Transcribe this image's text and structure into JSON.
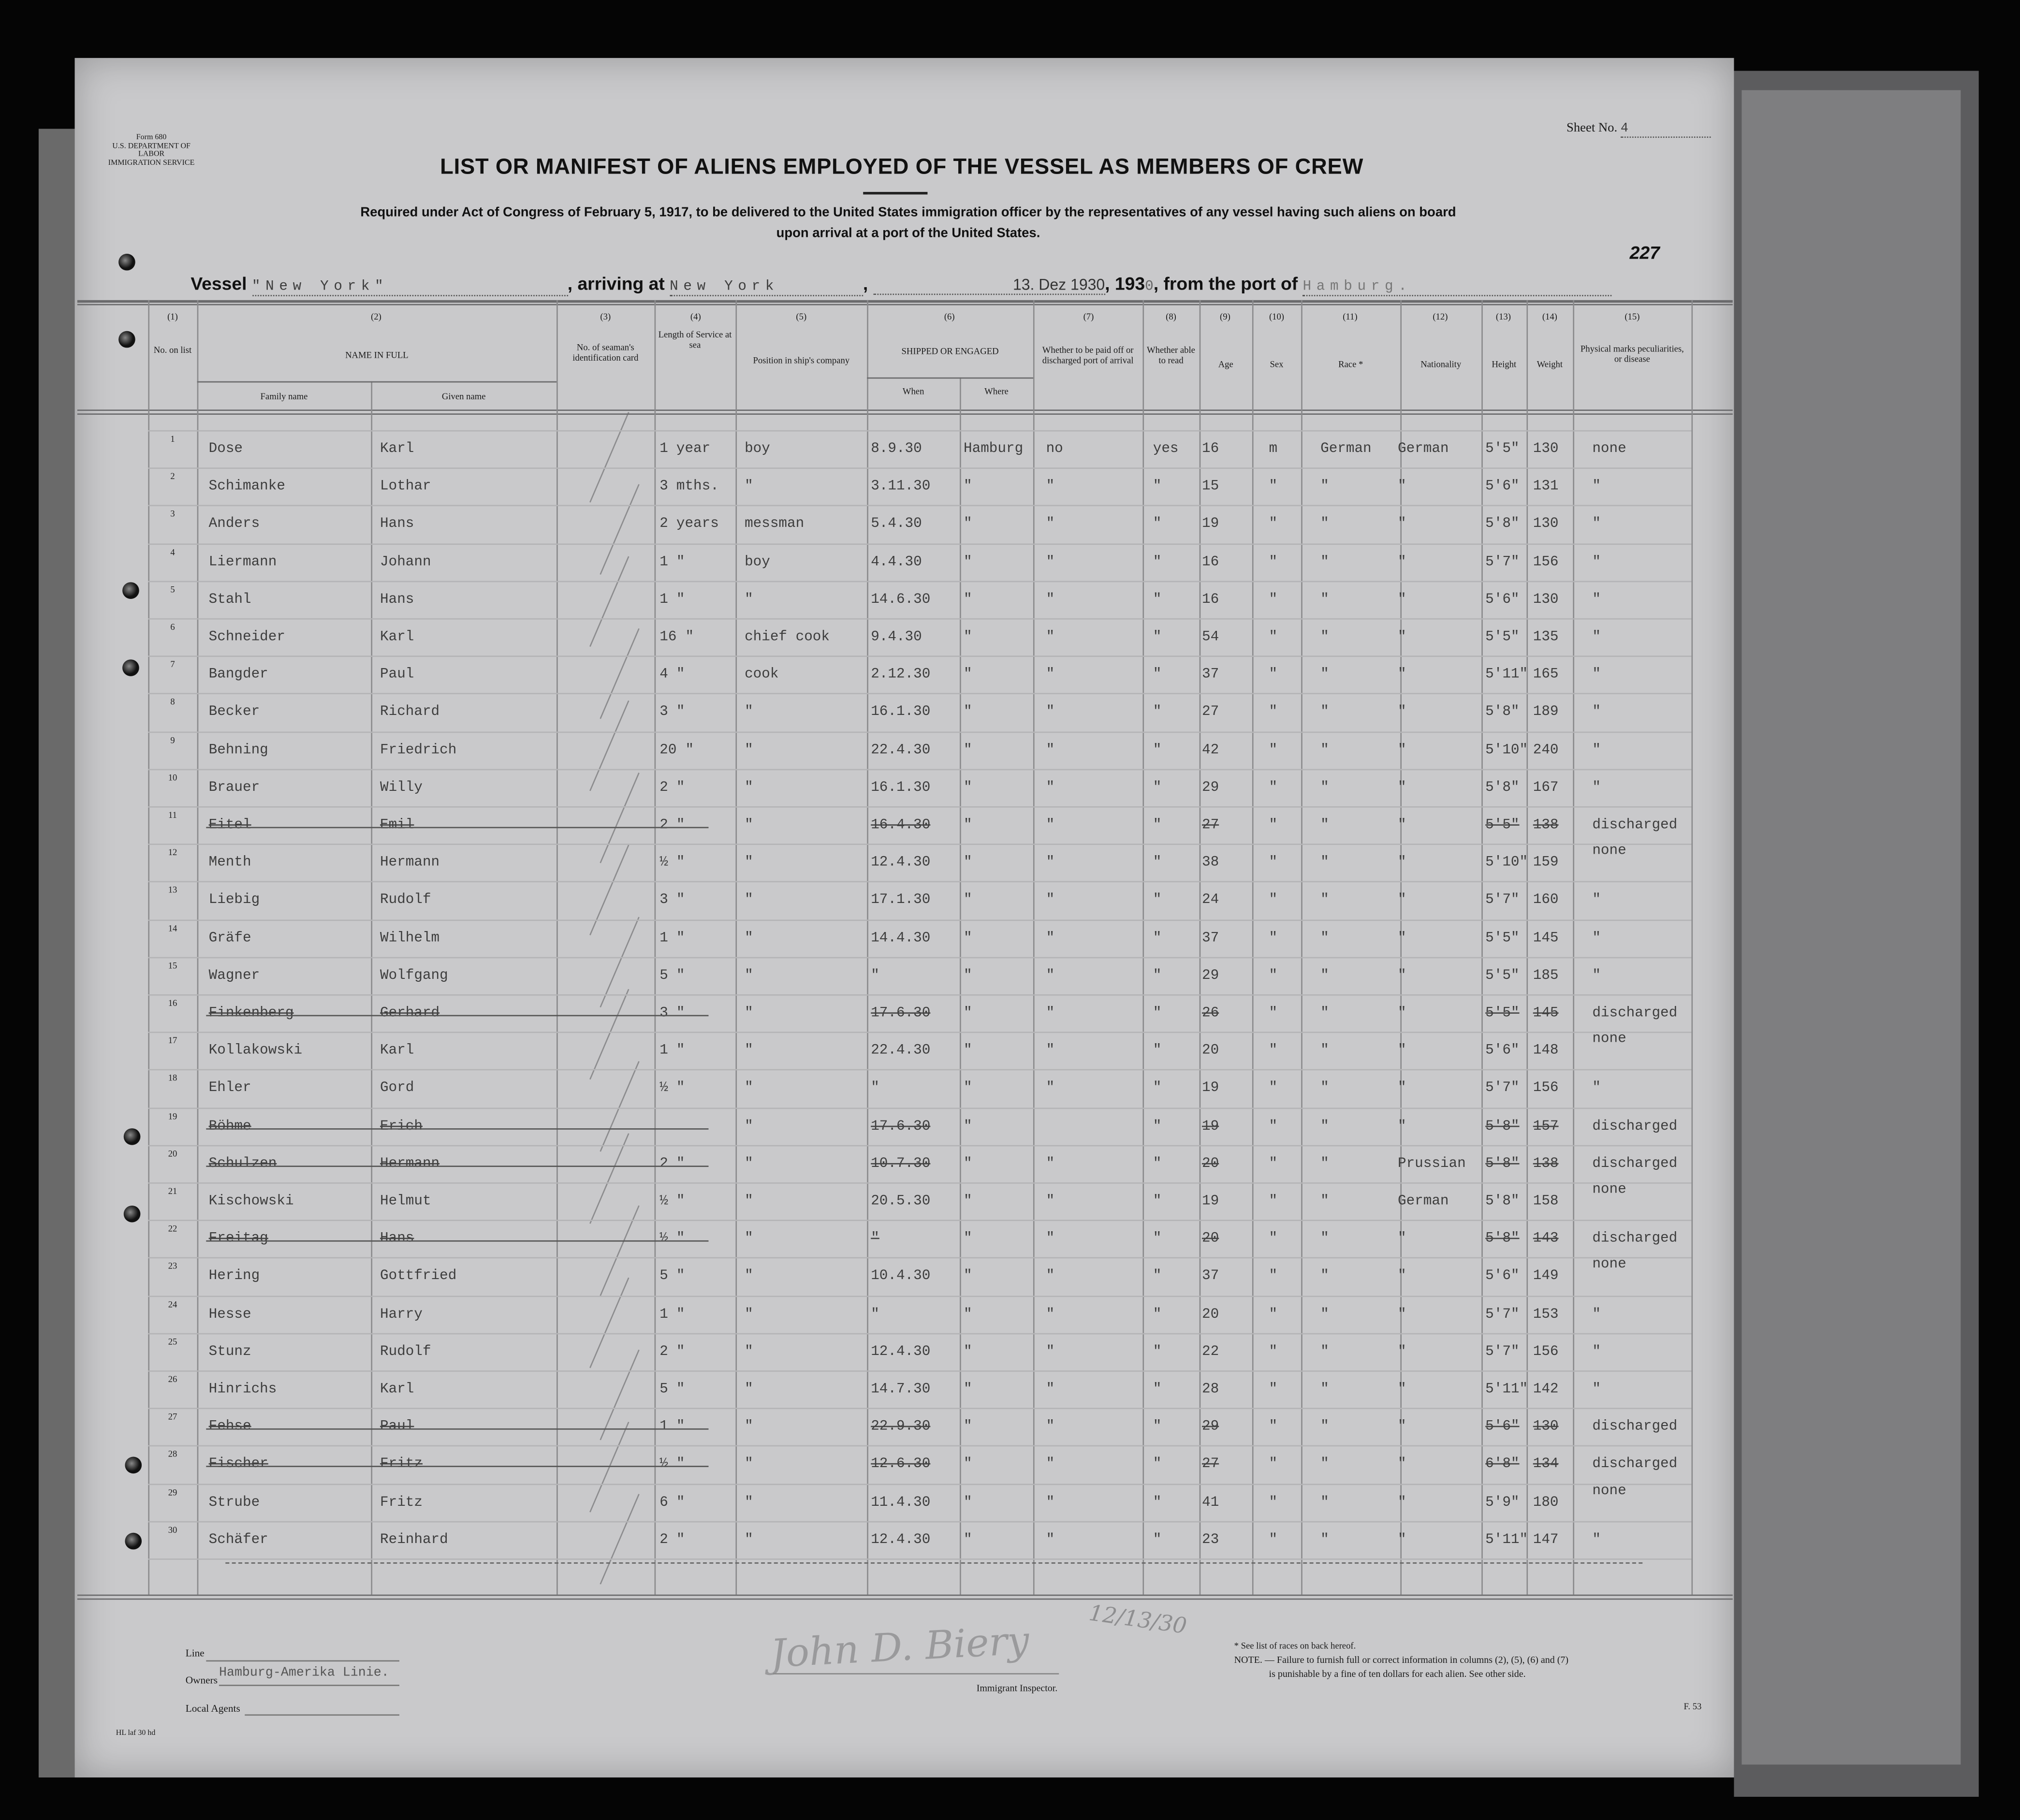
{
  "form": {
    "number": "Form 680",
    "department": "U.S. DEPARTMENT OF LABOR",
    "service": "IMMIGRATION SERVICE"
  },
  "sheet": {
    "label": "Sheet No.",
    "value": "4"
  },
  "stamp_number": "227",
  "title": "LIST OR MANIFEST OF ALIENS EMPLOYED OF THE VESSEL AS MEMBERS OF CREW",
  "subtitle_line1": "Required under Act of Congress of February 5, 1917, to be delivered to the United States immigration officer by the representatives of any vessel having such aliens on board",
  "subtitle_line2": "upon arrival at a port of the United States.",
  "vessel_line": {
    "vessel_label": "Vessel",
    "vessel_value": "\"New York\"",
    "arriving_label": ", arriving at",
    "arriving_value": "New York",
    "date_value": "13. Dez 1930",
    "year_label": ", 193",
    "year_suffix": "0",
    "port_label": ", from the port of",
    "port_value": "Hamburg."
  },
  "columns": {
    "numbers": [
      "(1)",
      "(2)",
      "(3)",
      "(4)",
      "(5)",
      "(6)",
      "(7)",
      "(8)",
      "(9)",
      "(10)",
      "(11)",
      "(12)",
      "(13)",
      "(14)",
      "(15)"
    ],
    "no_on_list": "No. on list",
    "name_in_full": "NAME IN FULL",
    "family_name": "Family name",
    "given_name": "Given name",
    "seaman_card": "No. of seaman's identification card",
    "length_service": "Length of Service at sea",
    "position": "Position in ship's company",
    "shipped": "SHIPPED OR ENGAGED",
    "when": "When",
    "where": "Where",
    "paid_off": "Whether to be paid off or discharged port of arrival",
    "able_read": "Whether able to read",
    "age": "Age",
    "sex": "Sex",
    "race": "Race *",
    "nationality": "Nationality",
    "height": "Height",
    "weight": "Weight",
    "marks": "Physical marks peculiarities, or disease"
  },
  "row_fields": [
    "family",
    "given",
    "service",
    "service_unit",
    "position",
    "when",
    "where",
    "paid_off",
    "read",
    "age",
    "sex",
    "race",
    "nationality",
    "height",
    "weight",
    "marks"
  ],
  "rows": [
    {
      "no": "1",
      "struck": false,
      "cells": [
        "Dose",
        "Karl",
        "1",
        "year",
        "boy",
        "8.9.30",
        "Hamburg",
        "no",
        "yes",
        "16",
        "m",
        "German",
        "German",
        "5'5\"",
        "130",
        "none"
      ]
    },
    {
      "no": "2",
      "struck": false,
      "cells": [
        "Schimanke",
        "Lothar",
        "3",
        "mths.",
        "\"",
        "3.11.30",
        "\"",
        "\"",
        "\"",
        "15",
        "\"",
        "\"",
        "\"",
        "5'6\"",
        "131",
        "\""
      ]
    },
    {
      "no": "3",
      "struck": false,
      "cells": [
        "Anders",
        "Hans",
        "2",
        "years",
        "messman",
        "5.4.30",
        "\"",
        "\"",
        "\"",
        "19",
        "\"",
        "\"",
        "\"",
        "5'8\"",
        "130",
        "\""
      ]
    },
    {
      "no": "4",
      "struck": false,
      "cells": [
        "Liermann",
        "Johann",
        "1",
        "\"",
        "boy",
        "4.4.30",
        "\"",
        "\"",
        "\"",
        "16",
        "\"",
        "\"",
        "\"",
        "5'7\"",
        "156",
        "\""
      ]
    },
    {
      "no": "5",
      "struck": false,
      "cells": [
        "Stahl",
        "Hans",
        "1",
        "\"",
        "\"",
        "14.6.30",
        "\"",
        "\"",
        "\"",
        "16",
        "\"",
        "\"",
        "\"",
        "5'6\"",
        "130",
        "\""
      ]
    },
    {
      "no": "6",
      "struck": false,
      "cells": [
        "Schneider",
        "Karl",
        "16",
        "\"",
        "chief cook",
        "9.4.30",
        "\"",
        "\"",
        "\"",
        "54",
        "\"",
        "\"",
        "\"",
        "5'5\"",
        "135",
        "\""
      ]
    },
    {
      "no": "7",
      "struck": false,
      "cells": [
        "Bangder",
        "Paul",
        "4",
        "\"",
        "cook",
        "2.12.30",
        "\"",
        "\"",
        "\"",
        "37",
        "\"",
        "\"",
        "\"",
        "5'11\"",
        "165",
        "\""
      ]
    },
    {
      "no": "8",
      "struck": false,
      "cells": [
        "Becker",
        "Richard",
        "3",
        "\"",
        "\"",
        "16.1.30",
        "\"",
        "\"",
        "\"",
        "27",
        "\"",
        "\"",
        "\"",
        "5'8\"",
        "189",
        "\""
      ]
    },
    {
      "no": "9",
      "struck": false,
      "cells": [
        "Behning",
        "Friedrich",
        "20",
        "\"",
        "\"",
        "22.4.30",
        "\"",
        "\"",
        "\"",
        "42",
        "\"",
        "\"",
        "\"",
        "5'10\"",
        "240",
        "\""
      ]
    },
    {
      "no": "10",
      "struck": false,
      "cells": [
        "Brauer",
        "Willy",
        "2",
        "\"",
        "\"",
        "16.1.30",
        "\"",
        "\"",
        "\"",
        "29",
        "\"",
        "\"",
        "\"",
        "5'8\"",
        "167",
        "\""
      ]
    },
    {
      "no": "11",
      "struck": true,
      "cells": [
        "Eitel",
        "Emil",
        "2",
        "\"",
        "\"",
        "16.4.30",
        "\"",
        "\"",
        "\"",
        "27",
        "\"",
        "\"",
        "\"",
        "5'5\"",
        "138",
        "discharged"
      ]
    },
    {
      "no": "12",
      "struck": false,
      "cells": [
        "Menth",
        "Hermann",
        "½",
        "\"",
        "\"",
        "12.4.30",
        "\"",
        "\"",
        "\"",
        "38",
        "\"",
        "\"",
        "\"",
        "5'10\"",
        "159",
        "none"
      ]
    },
    {
      "no": "13",
      "struck": false,
      "cells": [
        "Liebig",
        "Rudolf",
        "3",
        "\"",
        "\"",
        "17.1.30",
        "\"",
        "\"",
        "\"",
        "24",
        "\"",
        "\"",
        "\"",
        "5'7\"",
        "160",
        "\""
      ]
    },
    {
      "no": "14",
      "struck": false,
      "cells": [
        "Gräfe",
        "Wilhelm",
        "1",
        "\"",
        "\"",
        "14.4.30",
        "\"",
        "\"",
        "\"",
        "37",
        "\"",
        "\"",
        "\"",
        "5'5\"",
        "145",
        "\""
      ]
    },
    {
      "no": "15",
      "struck": false,
      "cells": [
        "Wagner",
        "Wolfgang",
        "5",
        "\"",
        "\"",
        "\"",
        "\"",
        "\"",
        "\"",
        "29",
        "\"",
        "\"",
        "\"",
        "5'5\"",
        "185",
        "\""
      ]
    },
    {
      "no": "16",
      "struck": true,
      "cells": [
        "Finkenberg",
        "Gerhard",
        "3",
        "\"",
        "\"",
        "17.6.30",
        "\"",
        "\"",
        "\"",
        "26",
        "\"",
        "\"",
        "\"",
        "5'5\"",
        "145",
        "discharged"
      ]
    },
    {
      "no": "17",
      "struck": false,
      "cells": [
        "Kollakowski",
        "Karl",
        "1",
        "\"",
        "\"",
        "22.4.30",
        "\"",
        "\"",
        "\"",
        "20",
        "\"",
        "\"",
        "\"",
        "5'6\"",
        "148",
        "none"
      ]
    },
    {
      "no": "18",
      "struck": false,
      "cells": [
        "Ehler",
        "Gord",
        "½",
        "\"",
        "\"",
        "\"",
        "\"",
        "\"",
        "\"",
        "19",
        "\"",
        "\"",
        "\"",
        "5'7\"",
        "156",
        "\""
      ]
    },
    {
      "no": "19",
      "struck": true,
      "cells": [
        "Böhme",
        "Erich",
        "",
        "",
        "\"",
        "17.6.30",
        "\"",
        "",
        "\"",
        "19",
        "\"",
        "\"",
        "\"",
        "5'8\"",
        "157",
        "discharged"
      ]
    },
    {
      "no": "20",
      "struck": true,
      "cells": [
        "Schulzen",
        "Hermann",
        "2",
        "\"",
        "\"",
        "10.7.30",
        "\"",
        "\"",
        "\"",
        "20",
        "\"",
        "\"",
        "Prussian",
        "5'8\"",
        "138",
        "discharged"
      ]
    },
    {
      "no": "21",
      "struck": false,
      "cells": [
        "Kischowski",
        "Helmut",
        "½",
        "\"",
        "\"",
        "20.5.30",
        "\"",
        "\"",
        "\"",
        "19",
        "\"",
        "\"",
        "German",
        "5'8\"",
        "158",
        "none"
      ]
    },
    {
      "no": "22",
      "struck": true,
      "cells": [
        "Freitag",
        "Hans",
        "½",
        "\"",
        "\"",
        "\"",
        "\"",
        "\"",
        "\"",
        "20",
        "\"",
        "\"",
        "\"",
        "5'8\"",
        "143",
        "discharged"
      ]
    },
    {
      "no": "23",
      "struck": false,
      "cells": [
        "Hering",
        "Gottfried",
        "5",
        "\"",
        "\"",
        "10.4.30",
        "\"",
        "\"",
        "\"",
        "37",
        "\"",
        "\"",
        "\"",
        "5'6\"",
        "149",
        "none"
      ]
    },
    {
      "no": "24",
      "struck": false,
      "cells": [
        "Hesse",
        "Harry",
        "1",
        "\"",
        "\"",
        "\"",
        "\"",
        "\"",
        "\"",
        "20",
        "\"",
        "\"",
        "\"",
        "5'7\"",
        "153",
        "\""
      ]
    },
    {
      "no": "25",
      "struck": false,
      "cells": [
        "Stunz",
        "Rudolf",
        "2",
        "\"",
        "\"",
        "12.4.30",
        "\"",
        "\"",
        "\"",
        "22",
        "\"",
        "\"",
        "\"",
        "5'7\"",
        "156",
        "\""
      ]
    },
    {
      "no": "26",
      "struck": false,
      "cells": [
        "Hinrichs",
        "Karl",
        "5",
        "\"",
        "\"",
        "14.7.30",
        "\"",
        "\"",
        "\"",
        "28",
        "\"",
        "\"",
        "\"",
        "5'11\"",
        "142",
        "\""
      ]
    },
    {
      "no": "27",
      "struck": true,
      "cells": [
        "Fehse",
        "Paul",
        "1",
        "\"",
        "\"",
        "22.9.30",
        "\"",
        "\"",
        "\"",
        "29",
        "\"",
        "\"",
        "\"",
        "5'6\"",
        "130",
        "discharged"
      ]
    },
    {
      "no": "28",
      "struck": true,
      "cells": [
        "Fischer",
        "Fritz",
        "½",
        "\"",
        "\"",
        "12.6.30",
        "\"",
        "\"",
        "\"",
        "27",
        "\"",
        "\"",
        "\"",
        "6'8\"",
        "134",
        "discharged"
      ]
    },
    {
      "no": "29",
      "struck": false,
      "cells": [
        "Strube",
        "Fritz",
        "6",
        "\"",
        "\"",
        "11.4.30",
        "\"",
        "\"",
        "\"",
        "41",
        "\"",
        "\"",
        "\"",
        "5'9\"",
        "180",
        "none"
      ]
    },
    {
      "no": "30",
      "struck": false,
      "cells": [
        "Schäfer",
        "Reinhard",
        "2",
        "\"",
        "\"",
        "12.4.30",
        "\"",
        "\"",
        "\"",
        "23",
        "\"",
        "\"",
        "\"",
        "5'11\"",
        "147",
        "\""
      ]
    }
  ],
  "footer": {
    "line_label": "Line",
    "owners_label": "Owners",
    "owners_value": "Hamburg-Amerika Linie.",
    "local_agents_label": "Local Agents",
    "print_code": "HL laf 30 hd",
    "signature": "John D. Biery",
    "signature_date": "12/13/30",
    "inspector_label": "Immigrant Inspector.",
    "races_note": "* See list of races on back hereof.",
    "note_line1": "NOTE. — Failure to furnish full or correct information in columns (2), (5), (6) and (7)",
    "note_line2": "is punishable by a fine of ten dollars for each alien.  See other side.",
    "form_code": "F. 53"
  }
}
